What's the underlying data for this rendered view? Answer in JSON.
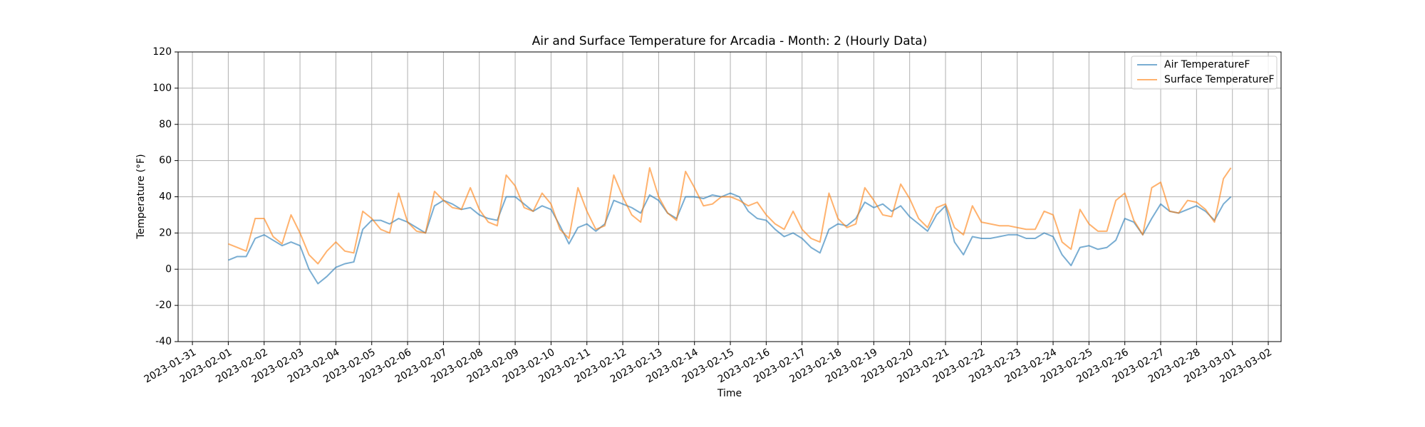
{
  "chart_data": {
    "type": "line",
    "title": "Air and Surface Temperature for Arcadia - Month: 2 (Hourly Data)",
    "x_label": "Time",
    "y_label": "Temperature (°F)",
    "x": [
      "2023-02-01T00:00",
      "2023-02-01T06:00",
      "2023-02-01T12:00",
      "2023-02-01T18:00",
      "2023-02-02T00:00",
      "2023-02-02T06:00",
      "2023-02-02T12:00",
      "2023-02-02T18:00",
      "2023-02-03T00:00",
      "2023-02-03T06:00",
      "2023-02-03T12:00",
      "2023-02-03T18:00",
      "2023-02-04T00:00",
      "2023-02-04T06:00",
      "2023-02-04T12:00",
      "2023-02-04T18:00",
      "2023-02-05T00:00",
      "2023-02-05T06:00",
      "2023-02-05T12:00",
      "2023-02-05T18:00",
      "2023-02-06T00:00",
      "2023-02-06T06:00",
      "2023-02-06T12:00",
      "2023-02-06T18:00",
      "2023-02-07T00:00",
      "2023-02-07T06:00",
      "2023-02-07T12:00",
      "2023-02-07T18:00",
      "2023-02-08T00:00",
      "2023-02-08T06:00",
      "2023-02-08T12:00",
      "2023-02-08T18:00",
      "2023-02-09T00:00",
      "2023-02-09T06:00",
      "2023-02-09T12:00",
      "2023-02-09T18:00",
      "2023-02-10T00:00",
      "2023-02-10T06:00",
      "2023-02-10T12:00",
      "2023-02-10T18:00",
      "2023-02-11T00:00",
      "2023-02-11T06:00",
      "2023-02-11T12:00",
      "2023-02-11T18:00",
      "2023-02-12T00:00",
      "2023-02-12T06:00",
      "2023-02-12T12:00",
      "2023-02-12T18:00",
      "2023-02-13T00:00",
      "2023-02-13T06:00",
      "2023-02-13T12:00",
      "2023-02-13T18:00",
      "2023-02-14T00:00",
      "2023-02-14T06:00",
      "2023-02-14T12:00",
      "2023-02-14T18:00",
      "2023-02-15T00:00",
      "2023-02-15T06:00",
      "2023-02-15T12:00",
      "2023-02-15T18:00",
      "2023-02-16T00:00",
      "2023-02-16T06:00",
      "2023-02-16T12:00",
      "2023-02-16T18:00",
      "2023-02-17T00:00",
      "2023-02-17T06:00",
      "2023-02-17T12:00",
      "2023-02-17T18:00",
      "2023-02-18T00:00",
      "2023-02-18T06:00",
      "2023-02-18T12:00",
      "2023-02-18T18:00",
      "2023-02-19T00:00",
      "2023-02-19T06:00",
      "2023-02-19T12:00",
      "2023-02-19T18:00",
      "2023-02-20T00:00",
      "2023-02-20T06:00",
      "2023-02-20T12:00",
      "2023-02-20T18:00",
      "2023-02-21T00:00",
      "2023-02-21T06:00",
      "2023-02-21T12:00",
      "2023-02-21T18:00",
      "2023-02-22T00:00",
      "2023-02-22T06:00",
      "2023-02-22T12:00",
      "2023-02-22T18:00",
      "2023-02-23T00:00",
      "2023-02-23T06:00",
      "2023-02-23T12:00",
      "2023-02-23T18:00",
      "2023-02-24T00:00",
      "2023-02-24T06:00",
      "2023-02-24T12:00",
      "2023-02-24T18:00",
      "2023-02-25T00:00",
      "2023-02-25T06:00",
      "2023-02-25T12:00",
      "2023-02-25T18:00",
      "2023-02-26T00:00",
      "2023-02-26T06:00",
      "2023-02-26T12:00",
      "2023-02-26T18:00",
      "2023-02-27T00:00",
      "2023-02-27T06:00",
      "2023-02-27T12:00",
      "2023-02-27T18:00",
      "2023-02-28T00:00",
      "2023-02-28T06:00",
      "2023-02-28T12:00",
      "2023-02-28T18:00",
      "2023-02-28T23:00"
    ],
    "series": [
      {
        "name": "Air TemperatureF",
        "color": "#1f77b4",
        "values": [
          5,
          7,
          7,
          17,
          19,
          16,
          13,
          15,
          13,
          0,
          -8,
          -4,
          1,
          3,
          4,
          22,
          27,
          27,
          25,
          28,
          26,
          23,
          20,
          35,
          38,
          36,
          33,
          34,
          30,
          28,
          27,
          40,
          40,
          36,
          32,
          35,
          33,
          24,
          14,
          23,
          25,
          21,
          25,
          38,
          36,
          34,
          31,
          41,
          38,
          31,
          28,
          40,
          40,
          39,
          41,
          40,
          42,
          40,
          32,
          28,
          27,
          22,
          18,
          20,
          17,
          12,
          9,
          22,
          25,
          24,
          28,
          37,
          34,
          36,
          32,
          35,
          29,
          25,
          21,
          30,
          35,
          15,
          8,
          18,
          17,
          17,
          18,
          19,
          19,
          17,
          17,
          20,
          18,
          8,
          2,
          12,
          13,
          11,
          12,
          16,
          28,
          26,
          19,
          28,
          36,
          32,
          31,
          33,
          35,
          32,
          27,
          36,
          40
        ]
      },
      {
        "name": "Surface TemperatureF",
        "color": "#ff7f0e",
        "values": [
          14,
          12,
          10,
          28,
          28,
          18,
          14,
          30,
          20,
          8,
          3,
          10,
          15,
          10,
          9,
          32,
          28,
          22,
          20,
          42,
          26,
          21,
          20,
          43,
          38,
          34,
          33,
          45,
          33,
          26,
          24,
          52,
          46,
          34,
          32,
          42,
          36,
          22,
          17,
          45,
          32,
          22,
          24,
          52,
          40,
          30,
          26,
          56,
          40,
          31,
          27,
          54,
          45,
          35,
          36,
          40,
          40,
          38,
          35,
          37,
          30,
          25,
          22,
          32,
          22,
          17,
          15,
          42,
          28,
          23,
          25,
          45,
          38,
          30,
          29,
          47,
          39,
          28,
          23,
          34,
          36,
          23,
          19,
          35,
          26,
          25,
          24,
          24,
          23,
          22,
          22,
          32,
          30,
          15,
          11,
          33,
          25,
          21,
          21,
          38,
          42,
          27,
          19,
          45,
          48,
          32,
          31,
          38,
          37,
          33,
          26,
          50,
          56
        ]
      }
    ],
    "xlim": [
      "2023-01-30T14:26",
      "2023-03-02T08:34"
    ],
    "xticks": [
      "2023-01-31",
      "2023-02-01",
      "2023-02-02",
      "2023-02-03",
      "2023-02-04",
      "2023-02-05",
      "2023-02-06",
      "2023-02-07",
      "2023-02-08",
      "2023-02-09",
      "2023-02-10",
      "2023-02-11",
      "2023-02-12",
      "2023-02-13",
      "2023-02-14",
      "2023-02-15",
      "2023-02-16",
      "2023-02-17",
      "2023-02-18",
      "2023-02-19",
      "2023-02-20",
      "2023-02-21",
      "2023-02-22",
      "2023-02-23",
      "2023-02-24",
      "2023-02-25",
      "2023-02-26",
      "2023-02-27",
      "2023-02-28",
      "2023-03-01",
      "2023-03-02"
    ],
    "ylim": [
      -40,
      120
    ],
    "yticks": [
      -40,
      -20,
      0,
      20,
      40,
      60,
      80,
      100,
      120
    ],
    "grid": true,
    "legend": "upper right"
  }
}
